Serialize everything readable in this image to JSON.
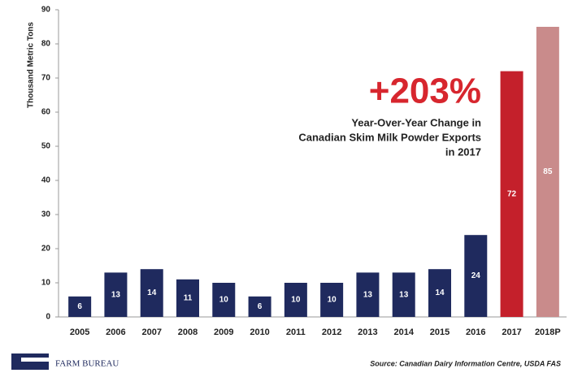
{
  "chart_data": {
    "type": "bar",
    "ylabel": "Thousand Metric Tons",
    "categories": [
      "2005",
      "2006",
      "2007",
      "2008",
      "2009",
      "2010",
      "2011",
      "2012",
      "2013",
      "2014",
      "2015",
      "2016",
      "2017",
      "2018P"
    ],
    "values": [
      6,
      13,
      14,
      11,
      10,
      6,
      10,
      10,
      13,
      13,
      14,
      24,
      72,
      85
    ],
    "colors": [
      "#1f2a5e",
      "#1f2a5e",
      "#1f2a5e",
      "#1f2a5e",
      "#1f2a5e",
      "#1f2a5e",
      "#1f2a5e",
      "#1f2a5e",
      "#1f2a5e",
      "#1f2a5e",
      "#1f2a5e",
      "#1f2a5e",
      "#c4202b",
      "#c98b8b"
    ],
    "ylim": [
      0,
      90
    ],
    "yticks": [
      0,
      10,
      20,
      30,
      40,
      50,
      60,
      70,
      80,
      90
    ],
    "annotation": {
      "headline": "+203%",
      "lines": [
        "Year-Over-Year Change in",
        "Canadian Skim Milk Powder Exports",
        "in 2017"
      ]
    },
    "source": "Source: Canadian Dairy Information Centre, USDA FAS",
    "logo": "FARM BUREAU"
  }
}
